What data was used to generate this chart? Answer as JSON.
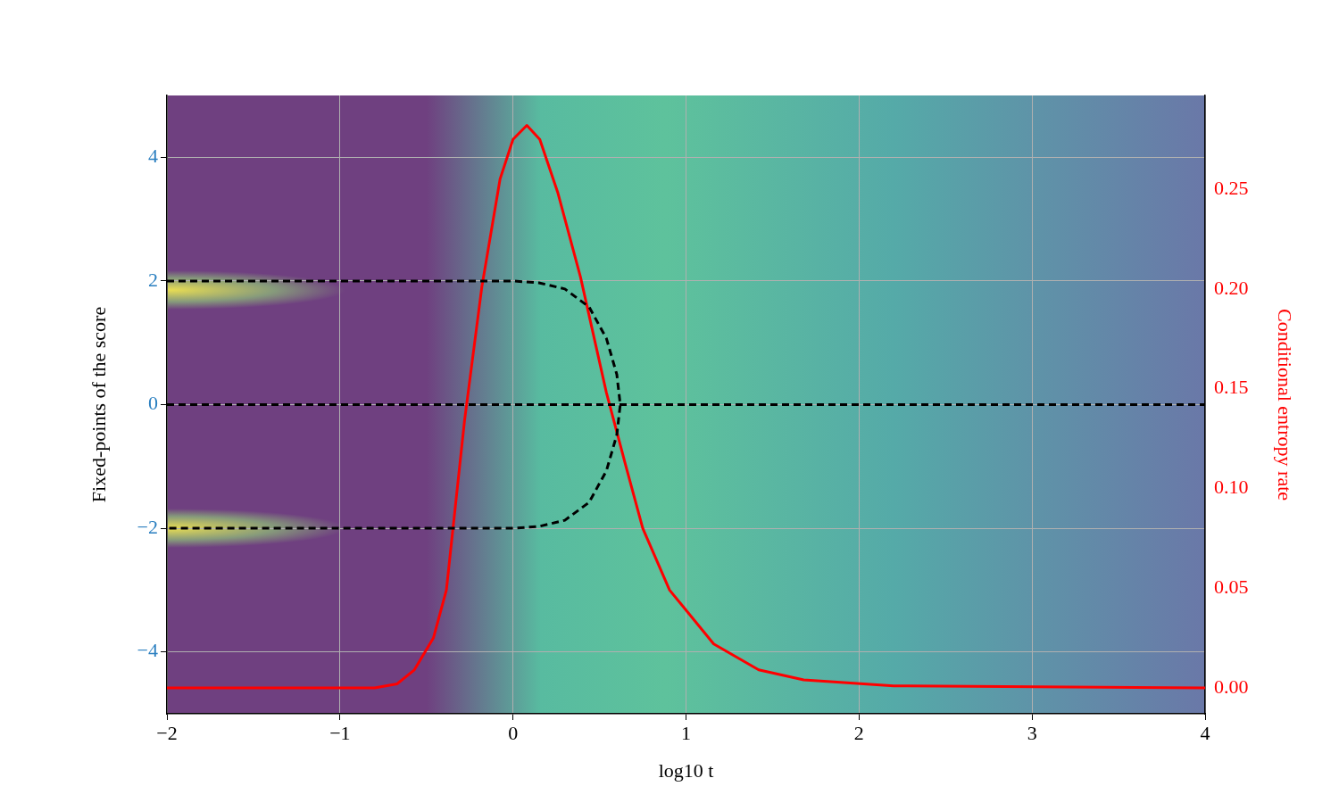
{
  "chart_data": {
    "type": "line",
    "xlabel": "log10 t",
    "ylabel": "Fixed-points of the score",
    "y2label": "Conditional entropy rate",
    "xlim": [
      -2,
      4
    ],
    "xticks": [
      {
        "value": -2,
        "label": "−2"
      },
      {
        "value": -1,
        "label": "−1"
      },
      0,
      1,
      2,
      3,
      4
    ],
    "ylim": [
      -5,
      5
    ],
    "yticks": [
      {
        "value": -4,
        "label": "−4"
      },
      {
        "value": -2,
        "label": "−2"
      },
      0,
      2,
      4
    ],
    "y2lim": [
      -0.013,
      0.297
    ],
    "y2ticks": [
      {
        "value": 0,
        "label": "0.00"
      },
      {
        "value": 0.05,
        "label": "0.05"
      },
      {
        "value": 0.1,
        "label": "0.10"
      },
      {
        "value": 0.15,
        "label": "0.15"
      },
      {
        "value": 0.2,
        "label": "0.20"
      },
      {
        "value": 0.25,
        "label": "0.25"
      }
    ],
    "grid": true,
    "legend": false,
    "marker": "none",
    "series": [
      {
        "color": "#000000",
        "line_style": "dashed",
        "x": [
          -2,
          0,
          0.15,
          0.3,
          0.44,
          0.54,
          0.6,
          0.62,
          0.6,
          0.54,
          0.44,
          0.3,
          0.15,
          0,
          -2
        ],
        "values": [
          2,
          2,
          1.97,
          1.87,
          1.58,
          1.07,
          0.49,
          0,
          -0.49,
          -1.07,
          -1.58,
          -1.87,
          -1.97,
          -2,
          -2
        ]
      },
      {
        "color": "#000000",
        "line_style": "dashed",
        "x": [
          -2,
          4
        ],
        "values": [
          0,
          0
        ]
      },
      {
        "color": "#ff0000",
        "line_style": "solid",
        "axis": "y2",
        "x": [
          -2,
          -0.8,
          -0.67,
          -0.57,
          -0.46,
          -0.385,
          -0.28,
          -0.18,
          -0.075,
          0,
          0.08,
          0.155,
          0.26,
          0.39,
          0.54,
          0.65,
          0.75,
          0.905,
          1.16,
          1.42,
          1.68,
          2.2,
          4
        ],
        "values": [
          0,
          0,
          0.002,
          0.009,
          0.025,
          0.049,
          0.134,
          0.201,
          0.255,
          0.275,
          0.282,
          0.275,
          0.248,
          0.206,
          0.148,
          0.112,
          0.08,
          0.049,
          0.022,
          0.009,
          0.004,
          0.001,
          0
        ]
      }
    ]
  }
}
